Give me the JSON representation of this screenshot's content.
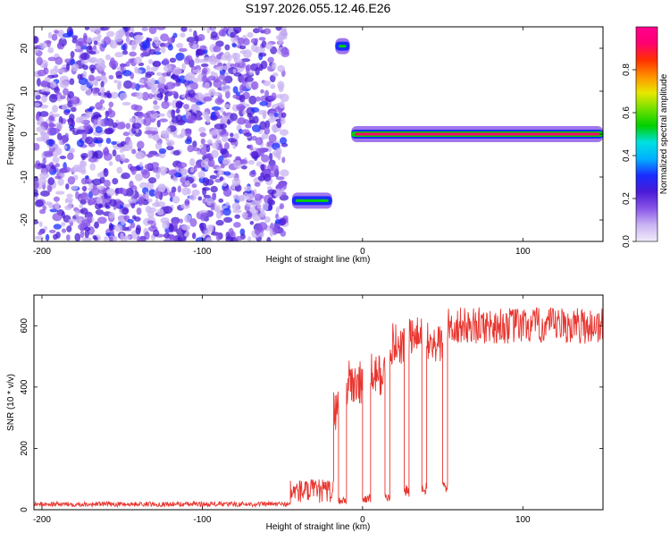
{
  "title": "S197.2026.055.12.46.E26",
  "chart_data": [
    {
      "type": "heatmap",
      "xlabel": "Height of straight line (km)",
      "ylabel": "Frequency (Hz)",
      "xlim": [
        -205,
        150
      ],
      "ylim": [
        -25,
        25
      ],
      "xticks": [
        "-200",
        "-100",
        "0",
        "100"
      ],
      "yticks": [
        "-20",
        "-10",
        "0",
        "10",
        "20"
      ],
      "colorbar": {
        "label": "Normalized spectral amplitude",
        "range": [
          0,
          1
        ],
        "ticks": [
          "0.0",
          "0.2",
          "0.4",
          "0.6",
          "0.8"
        ],
        "colormap": [
          "#f2ecfa",
          "#c9b4f2",
          "#8a55e8",
          "#4a1bd6",
          "#1a2cff",
          "#00b0ff",
          "#00e0e0",
          "#00d000",
          "#70e000",
          "#e8e800",
          "#ff9000",
          "#ff3000",
          "#ff0070",
          "#ff0090"
        ]
      },
      "features": [
        {
          "name": "diffuse noise",
          "x": [
            -205,
            -48
          ],
          "y": [
            -25,
            25
          ],
          "amplitude": 0.25
        },
        {
          "name": "lower band",
          "x": [
            -44,
            -19
          ],
          "y": -15.5,
          "amplitude": 0.55
        },
        {
          "name": "upper band",
          "x": [
            -17,
            -8
          ],
          "y": 20.5,
          "amplitude": 0.5
        },
        {
          "name": "main band",
          "x": [
            -7,
            150
          ],
          "y": 0,
          "amplitude": 0.95
        }
      ]
    },
    {
      "type": "line",
      "xlabel": "Height of straight line (km)",
      "ylabel": "SNR (10 * v/v)",
      "xlim": [
        -205,
        150
      ],
      "ylim": [
        0,
        700
      ],
      "xticks": [
        "-200",
        "-100",
        "0",
        "100"
      ],
      "yticks": [
        "0",
        "200",
        "400",
        "600"
      ],
      "color": "#e8352f",
      "series": [
        {
          "segments": [
            {
              "x0": -205,
              "x1": -45,
              "level": 18,
              "noise": 8
            },
            {
              "x0": -45,
              "x1": -18,
              "level": 60,
              "noise": 40
            },
            {
              "x0": -18,
              "x1": -15,
              "level": 330,
              "noise": 70
            },
            {
              "x0": -15,
              "x1": -10,
              "level": 30,
              "noise": 15
            },
            {
              "x0": -10,
              "x1": 0,
              "level": 410,
              "noise": 80
            },
            {
              "x0": 0,
              "x1": 5,
              "level": 35,
              "noise": 15
            },
            {
              "x0": 5,
              "x1": 14,
              "level": 440,
              "noise": 70
            },
            {
              "x0": 14,
              "x1": 17,
              "level": 40,
              "noise": 15
            },
            {
              "x0": 17,
              "x1": 26,
              "level": 540,
              "noise": 70
            },
            {
              "x0": 26,
              "x1": 29,
              "level": 60,
              "noise": 20
            },
            {
              "x0": 29,
              "x1": 37,
              "level": 560,
              "noise": 70
            },
            {
              "x0": 37,
              "x1": 40,
              "level": 70,
              "noise": 20
            },
            {
              "x0": 40,
              "x1": 50,
              "level": 540,
              "noise": 70
            },
            {
              "x0": 50,
              "x1": 53,
              "level": 75,
              "noise": 20
            },
            {
              "x0": 53,
              "x1": 150,
              "level": 600,
              "noise": 60
            }
          ]
        }
      ]
    }
  ]
}
